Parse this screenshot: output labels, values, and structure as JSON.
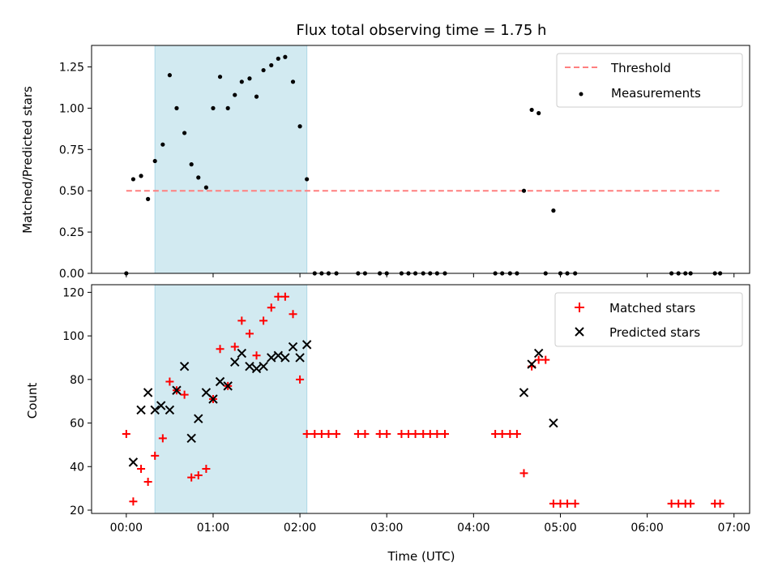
{
  "colors": {
    "threshold": "#ff7f7f",
    "measurement": "#000000",
    "matched": "#ff0000",
    "predicted": "#000000",
    "span": "#add8e6"
  },
  "chart_data": [
    {
      "type": "scatter",
      "title": "Flux total observing time = 1.75 h",
      "xlabel": "",
      "ylabel": "Matched/Predicted stars",
      "xlim": [
        -0.4,
        7.18
      ],
      "ylim": [
        0,
        1.38
      ],
      "yticks": [
        0.0,
        0.25,
        0.5,
        0.75,
        1.0,
        1.25
      ],
      "yticklabels": [
        "0.00",
        "0.25",
        "0.50",
        "0.75",
        "1.00",
        "1.25"
      ],
      "span": [
        0.33,
        2.08
      ],
      "legend": {
        "placement": "top-right",
        "threshold_label": "Threshold",
        "measurements_label": "Measurements"
      },
      "threshold": {
        "value": 0.5,
        "x": [
          0.0,
          6.83
        ]
      },
      "series": [
        {
          "name": "Measurements",
          "x": [
            0.0,
            0.08,
            0.17,
            0.25,
            0.33,
            0.42,
            0.5,
            0.58,
            0.67,
            0.75,
            0.83,
            0.92,
            1.0,
            1.08,
            1.17,
            1.25,
            1.33,
            1.42,
            1.5,
            1.58,
            1.67,
            1.75,
            1.83,
            1.92,
            2.0,
            2.08,
            2.17,
            2.25,
            2.33,
            2.42,
            2.67,
            2.75,
            2.92,
            3.0,
            3.17,
            3.25,
            3.33,
            3.42,
            3.5,
            3.58,
            3.67,
            4.25,
            4.33,
            4.42,
            4.5,
            4.58,
            4.67,
            4.75,
            4.83,
            4.92,
            5.0,
            5.08,
            5.17,
            6.28,
            6.36,
            6.44,
            6.5,
            6.78,
            6.84
          ],
          "y": [
            0.0,
            0.57,
            0.59,
            0.45,
            0.68,
            0.78,
            1.2,
            1.0,
            0.85,
            0.66,
            0.58,
            0.52,
            1.0,
            1.19,
            1.0,
            1.08,
            1.16,
            1.18,
            1.07,
            1.23,
            1.26,
            1.3,
            1.31,
            1.16,
            0.89,
            0.57,
            0.0,
            0.0,
            0.0,
            0.0,
            0.0,
            0.0,
            0.0,
            0.0,
            0.0,
            0.0,
            0.0,
            0.0,
            0.0,
            0.0,
            0.0,
            0.0,
            0.0,
            0.0,
            0.0,
            0.5,
            0.99,
            0.97,
            0.0,
            0.38,
            0.0,
            0.0,
            0.0,
            0.0,
            0.0,
            0.0,
            0.0,
            0.0,
            0.0
          ]
        }
      ]
    },
    {
      "type": "scatter",
      "title": "",
      "xlabel": "Time (UTC)",
      "ylabel": "Count",
      "xlim": [
        -0.4,
        7.18
      ],
      "ylim": [
        18.5,
        123.5
      ],
      "xticks": [
        0,
        1,
        2,
        3,
        4,
        5,
        6,
        7
      ],
      "xticklabels": [
        "00:00",
        "01:00",
        "02:00",
        "03:00",
        "04:00",
        "05:00",
        "06:00",
        "07:00"
      ],
      "yticks": [
        20,
        40,
        60,
        80,
        100,
        120
      ],
      "yticklabels": [
        "20",
        "40",
        "60",
        "80",
        "100",
        "120"
      ],
      "span": [
        0.33,
        2.08
      ],
      "legend": {
        "placement": "top-right",
        "matched_label": "Matched stars",
        "predicted_label": "Predicted stars"
      },
      "series": [
        {
          "name": "Matched stars",
          "x": [
            0.0,
            0.08,
            0.17,
            0.25,
            0.33,
            0.42,
            0.5,
            0.58,
            0.67,
            0.75,
            0.83,
            0.92,
            1.0,
            1.08,
            1.17,
            1.25,
            1.33,
            1.42,
            1.5,
            1.58,
            1.67,
            1.75,
            1.83,
            1.92,
            2.0,
            2.08,
            2.17,
            2.25,
            2.33,
            2.42,
            2.67,
            2.75,
            2.92,
            3.0,
            3.17,
            3.25,
            3.33,
            3.42,
            3.5,
            3.58,
            3.67,
            4.25,
            4.33,
            4.42,
            4.5,
            4.58,
            4.67,
            4.75,
            4.83,
            4.92,
            5.0,
            5.08,
            5.17,
            6.28,
            6.36,
            6.44,
            6.5,
            6.78,
            6.84
          ],
          "y": [
            55,
            24,
            39,
            33,
            45,
            53,
            79,
            75,
            73,
            35,
            36,
            39,
            71,
            94,
            77,
            95,
            107,
            101,
            91,
            107,
            113,
            118,
            118,
            110,
            80,
            55,
            55,
            55,
            55,
            55,
            55,
            55,
            55,
            55,
            55,
            55,
            55,
            55,
            55,
            55,
            55,
            55,
            55,
            55,
            55,
            37,
            86,
            89,
            89,
            23,
            23,
            23,
            23,
            23,
            23,
            23,
            23,
            23,
            23
          ]
        },
        {
          "name": "Predicted stars",
          "x": [
            0.08,
            0.17,
            0.25,
            0.33,
            0.4,
            0.5,
            0.58,
            0.67,
            0.75,
            0.83,
            0.92,
            1.0,
            1.08,
            1.17,
            1.25,
            1.33,
            1.42,
            1.5,
            1.58,
            1.67,
            1.75,
            1.83,
            1.92,
            2.0,
            2.08,
            4.58,
            4.67,
            4.75,
            4.92
          ],
          "y": [
            42,
            66,
            74,
            66,
            68,
            66,
            75,
            86,
            53,
            62,
            74,
            71,
            79,
            77,
            88,
            92,
            86,
            85,
            86,
            90,
            91,
            90,
            95,
            90,
            96,
            74,
            87,
            92,
            60
          ]
        }
      ]
    }
  ]
}
